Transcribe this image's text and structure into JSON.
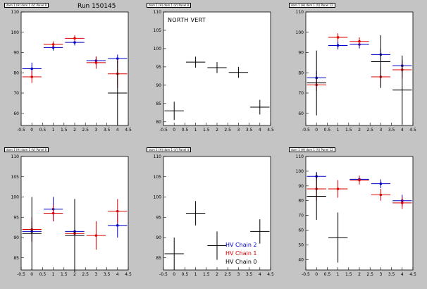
{
  "canvas": {
    "background": "#c4c4c4"
  },
  "colors": {
    "blue": "#0000cc",
    "red": "#dd0000",
    "black": "#000000"
  },
  "run_label": "Run 150145",
  "north_vert_label": "NORTH VERT",
  "legend": [
    {
      "name": "HV Chain 2",
      "color": "#0000cc"
    },
    {
      "name": "HV Chain 1",
      "color": "#dd0000"
    },
    {
      "name": "HV Chain 0",
      "color": "#000000"
    }
  ],
  "chart_data": [
    {
      "type": "scatter",
      "title": "dom 1 (H) dom 1 (V) Panel 8",
      "xlim": [
        -0.5,
        4.5
      ],
      "ylim": [
        54,
        110
      ],
      "xticks": [
        -0.5,
        0,
        0.5,
        1,
        1.5,
        2,
        2.5,
        3,
        3.5,
        4,
        4.5
      ],
      "yticks": [
        60,
        70,
        80,
        90,
        100,
        110
      ],
      "series": [
        {
          "color": "#0000cc",
          "points": [
            {
              "x": 0,
              "y": 82,
              "yerr": 3
            },
            {
              "x": 1,
              "y": 92.5,
              "yerr": 1.5
            },
            {
              "x": 2,
              "y": 95,
              "yerr": 1.5
            },
            {
              "x": 3,
              "y": 86,
              "yerr": 2
            },
            {
              "x": 4,
              "y": 87,
              "yerr": 2
            }
          ]
        },
        {
          "color": "#dd0000",
          "points": [
            {
              "x": 0,
              "y": 78,
              "yerr": 3
            },
            {
              "x": 1,
              "y": 94,
              "yerr": 1.5
            },
            {
              "x": 2,
              "y": 97,
              "yerr": 1.5
            },
            {
              "x": 3,
              "y": 85,
              "yerr": 3
            },
            {
              "x": 4,
              "y": 79.5,
              "yerr": 7
            }
          ]
        },
        {
          "color": "#000000",
          "points": [
            {
              "x": 4,
              "y": 70,
              "yerr": 16
            }
          ]
        }
      ]
    },
    {
      "type": "scatter",
      "title": "dom 1 (H) dom 1 (V) Panel 8",
      "xlim": [
        -0.5,
        4.5
      ],
      "ylim": [
        79,
        110
      ],
      "xticks": [
        -0.5,
        0,
        0.5,
        1,
        1.5,
        2,
        2.5,
        3,
        3.5,
        4,
        4.5
      ],
      "yticks": [
        80,
        85,
        90,
        95,
        100,
        105,
        110
      ],
      "series": [
        {
          "color": "#000000",
          "points": [
            {
              "x": 0,
              "y": 83,
              "yerr": 2.5
            },
            {
              "x": 1,
              "y": 96.3,
              "yerr": 1.5
            },
            {
              "x": 2,
              "y": 94.8,
              "yerr": 1.5
            },
            {
              "x": 3,
              "y": 93.5,
              "yerr": 1.5
            },
            {
              "x": 4,
              "y": 84,
              "yerr": 2
            }
          ]
        }
      ]
    },
    {
      "type": "scatter",
      "title": "dom 1 (H) dom 1 (V) Panel 12",
      "xlim": [
        -0.5,
        4.5
      ],
      "ylim": [
        54,
        110
      ],
      "xticks": [
        -0.5,
        0,
        0.5,
        1,
        1.5,
        2,
        2.5,
        3,
        3.5,
        4,
        4.5
      ],
      "yticks": [
        60,
        70,
        80,
        90,
        100,
        110
      ],
      "series": [
        {
          "color": "#0000cc",
          "points": [
            {
              "x": 0,
              "y": 77.5,
              "yerr": 3.5
            },
            {
              "x": 1,
              "y": 93.5,
              "yerr": 2
            },
            {
              "x": 2,
              "y": 94,
              "yerr": 2
            },
            {
              "x": 3,
              "y": 89,
              "yerr": 3
            },
            {
              "x": 4,
              "y": 83.5,
              "yerr": 3
            }
          ]
        },
        {
          "color": "#dd0000",
          "points": [
            {
              "x": 0,
              "y": 74,
              "yerr": 3
            },
            {
              "x": 1,
              "y": 97.5,
              "yerr": 2
            },
            {
              "x": 2,
              "y": 95.5,
              "yerr": 2
            },
            {
              "x": 3,
              "y": 78,
              "yerr": 5
            },
            {
              "x": 4,
              "y": 81.5,
              "yerr": 4
            }
          ]
        },
        {
          "color": "#000000",
          "points": [
            {
              "x": 0,
              "y": 75,
              "yerr": 16
            },
            {
              "x": 3,
              "y": 85.5,
              "yerr": 13
            },
            {
              "x": 4,
              "y": 71.5,
              "yerr": 17
            }
          ]
        }
      ]
    },
    {
      "type": "scatter",
      "title": "dom 1 (H) dom 1 (V) Panel 8",
      "xlim": [
        -0.5,
        4.5
      ],
      "ylim": [
        82,
        110
      ],
      "xticks": [
        -0.5,
        0,
        0.5,
        1,
        1.5,
        2,
        2.5,
        3,
        3.5,
        4,
        4.5
      ],
      "yticks": [
        85,
        90,
        95,
        100,
        105,
        110
      ],
      "series": [
        {
          "color": "#0000cc",
          "points": [
            {
              "x": 0,
              "y": 91.5,
              "yerr": 2.5
            },
            {
              "x": 1,
              "y": 97,
              "yerr": 3
            },
            {
              "x": 2,
              "y": 91.5,
              "yerr": 4
            },
            {
              "x": 4,
              "y": 93,
              "yerr": 3
            }
          ]
        },
        {
          "color": "#dd0000",
          "points": [
            {
              "x": 0,
              "y": 92,
              "yerr": 3
            },
            {
              "x": 1,
              "y": 96,
              "yerr": 2
            },
            {
              "x": 2,
              "y": 91,
              "yerr": 3
            },
            {
              "x": 3,
              "y": 90.5,
              "yerr": 3.5
            },
            {
              "x": 4,
              "y": 96.5,
              "yerr": 3
            }
          ]
        },
        {
          "color": "#000000",
          "points": [
            {
              "x": 0,
              "y": 91,
              "yerr": 9
            },
            {
              "x": 2,
              "y": 90.5,
              "yerr": 9
            }
          ]
        }
      ]
    },
    {
      "type": "scatter",
      "title": "dom 1 (H) dom 1 (V) Panel 4",
      "xlim": [
        -0.5,
        4.5
      ],
      "ylim": [
        82,
        110
      ],
      "xticks": [
        -0.5,
        0,
        0.5,
        1,
        1.5,
        2,
        2.5,
        3,
        3.5,
        4,
        4.5
      ],
      "yticks": [
        85,
        90,
        95,
        100,
        105,
        110
      ],
      "series": [
        {
          "color": "#000000",
          "points": [
            {
              "x": 0,
              "y": 86,
              "yerr": 4
            },
            {
              "x": 1,
              "y": 96,
              "yerr": 3
            },
            {
              "x": 2,
              "y": 88,
              "yerr": 3.5
            },
            {
              "x": 4,
              "y": 91.5,
              "yerr": 3
            }
          ]
        }
      ]
    },
    {
      "type": "scatter",
      "title": "dom 1 (H) dom 1 (V) Panel 12",
      "xlim": [
        -0.5,
        4.5
      ],
      "ylim": [
        33,
        110
      ],
      "xticks": [
        -0.5,
        0,
        0.5,
        1,
        1.5,
        2,
        2.5,
        3,
        3.5,
        4,
        4.5
      ],
      "yticks": [
        40,
        50,
        60,
        70,
        80,
        90,
        100,
        110
      ],
      "series": [
        {
          "color": "#0000cc",
          "points": [
            {
              "x": 0,
              "y": 96.5,
              "yerr": 3
            },
            {
              "x": 2,
              "y": 94.5,
              "yerr": 2.5
            },
            {
              "x": 3,
              "y": 91.5,
              "yerr": 3
            },
            {
              "x": 4,
              "y": 80,
              "yerr": 4
            }
          ]
        },
        {
          "color": "#dd0000",
          "points": [
            {
              "x": 0,
              "y": 88,
              "yerr": 8
            },
            {
              "x": 1,
              "y": 88,
              "yerr": 6
            },
            {
              "x": 2,
              "y": 94,
              "yerr": 3
            },
            {
              "x": 3,
              "y": 84,
              "yerr": 4
            },
            {
              "x": 4,
              "y": 78.5,
              "yerr": 4
            }
          ]
        },
        {
          "color": "#000000",
          "points": [
            {
              "x": 0,
              "y": 83,
              "yerr": 16
            },
            {
              "x": 1,
              "y": 55,
              "yerr": 17
            }
          ]
        }
      ]
    }
  ]
}
